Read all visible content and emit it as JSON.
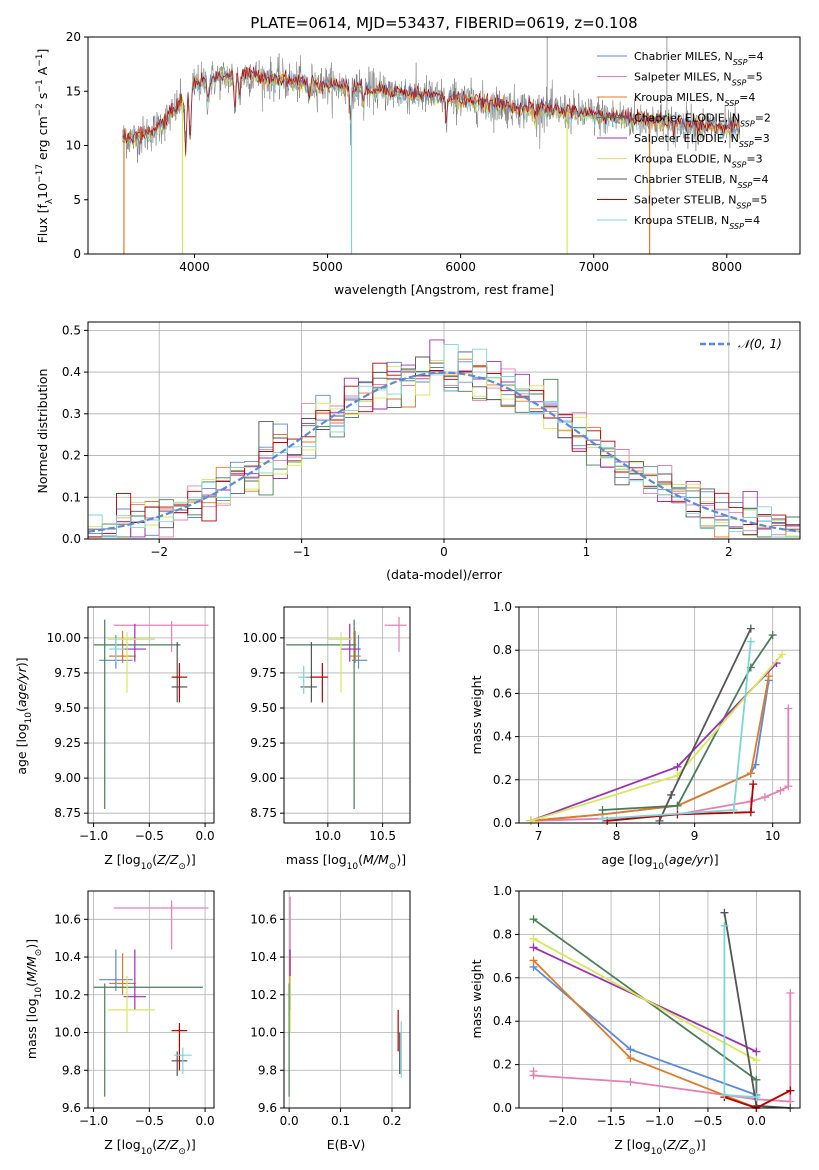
{
  "figure_title": "PLATE=0614, MJD=53437, FIBERID=0619, z=0.108",
  "colors": {
    "Chabrier MILES": "#5b8ad8",
    "Salpeter MILES": "#e580b4",
    "Kroupa MILES": "#e07a28",
    "Chabrier ELODIE": "#4a7c59",
    "Salpeter ELODIE": "#9b30b0",
    "Kroupa ELODIE": "#d6e85a",
    "Chabrier STELIB": "#555555",
    "Salpeter STELIB": "#b30000",
    "Kroupa STELIB": "#7fd4d8"
  },
  "chart_data": [
    {
      "id": "spectrum",
      "type": "line",
      "title": "PLATE=0614, MJD=53437, FIBERID=0619, z=0.108",
      "xlabel": "wavelength [Angstrom, rest frame]",
      "ylabel": "Flux [f",
      "xlim": [
        3200,
        8550
      ],
      "ylim": [
        0,
        20
      ],
      "xticks": [
        4000,
        5000,
        6000,
        7000,
        8000
      ],
      "yticks": [
        0,
        5,
        10,
        15,
        20
      ],
      "legend_position": "upper-right",
      "series": [
        {
          "name": "Chabrier MILES, N",
          "n": "4"
        },
        {
          "name": "Salpeter MILES, N",
          "n": "5"
        },
        {
          "name": "Kroupa MILES, N",
          "n": "4"
        },
        {
          "name": "Chabrier ELODIE, N",
          "n": "2"
        },
        {
          "name": "Salpeter ELODIE, N",
          "n": "3"
        },
        {
          "name": "Kroupa ELODIE, N",
          "n": "3"
        },
        {
          "name": "Chabrier STELIB, N",
          "n": "4"
        },
        {
          "name": "Salpeter STELIB, N",
          "n": "5"
        },
        {
          "name": "Kroupa STELIB, N",
          "n": "4"
        }
      ],
      "continuum": {
        "x": [
          3460,
          3600,
          3700,
          3800,
          3900,
          4000,
          4200,
          4400,
          4600,
          4800,
          5000,
          5200,
          5500,
          5800,
          6000,
          6200,
          6500,
          6800,
          7000,
          7200,
          7500,
          7800,
          8000,
          8100
        ],
        "y": [
          10.6,
          10.8,
          11.4,
          12.5,
          14,
          15.6,
          16.3,
          16.5,
          16.1,
          15.8,
          15.6,
          15.3,
          14.9,
          14.5,
          14.2,
          13.8,
          13.4,
          13.1,
          12.8,
          12.5,
          12.2,
          11.8,
          11.5,
          11.4
        ]
      }
    },
    {
      "id": "residuals",
      "type": "line",
      "xlabel": "(data-model)/error",
      "ylabel": "Normed distribution",
      "xlim": [
        -2.5,
        2.5
      ],
      "ylim": [
        0,
        0.52
      ],
      "xticks": [
        -2,
        -1,
        0,
        1,
        2
      ],
      "yticks": [
        0.0,
        0.1,
        0.2,
        0.3,
        0.4,
        0.5
      ],
      "grid": true,
      "legend": "𝒩(0, 1)",
      "legend_position": "upper-right",
      "bin_width": 0.1
    },
    {
      "id": "age-vs-Z",
      "type": "scatter",
      "xlabel": "Z [log",
      "ylabel": "age  [log",
      "xlim": [
        -1.05,
        0.08
      ],
      "ylim": [
        8.68,
        10.22
      ],
      "xticks": [
        -1.0,
        -0.5,
        0.0
      ],
      "yticks": [
        8.75,
        9.0,
        9.25,
        9.5,
        9.75,
        10.0
      ],
      "grid": true,
      "points": [
        {
          "s": "Chabrier MILES",
          "x": -0.8,
          "y": 9.84,
          "xe": [
            -0.95,
            -0.65
          ],
          "ye": [
            9.78,
            10.02
          ]
        },
        {
          "s": "Salpeter MILES",
          "x": -0.3,
          "y": 10.09,
          "xe": [
            -0.82,
            0.03
          ],
          "ye": [
            9.9,
            10.12
          ]
        },
        {
          "s": "Kroupa MILES",
          "x": -0.74,
          "y": 9.87,
          "xe": [
            -0.86,
            -0.62
          ],
          "ye": [
            9.82,
            10.05
          ]
        },
        {
          "s": "Chabrier ELODIE",
          "x": -0.9,
          "y": 9.95,
          "xe": [
            -1.0,
            -0.22
          ],
          "ye": [
            8.78,
            10.13
          ]
        },
        {
          "s": "Salpeter ELODIE",
          "x": -0.63,
          "y": 9.92,
          "xe": [
            -0.73,
            -0.53
          ],
          "ye": [
            9.83,
            10.1
          ]
        },
        {
          "s": "Kroupa ELODIE",
          "x": -0.7,
          "y": 9.99,
          "xe": [
            -0.87,
            -0.45
          ],
          "ye": [
            9.61,
            10.04
          ]
        },
        {
          "s": "Chabrier STELIB",
          "x": -0.25,
          "y": 9.65,
          "xe": [
            -0.3,
            -0.16
          ],
          "ye": [
            9.54,
            9.97
          ]
        },
        {
          "s": "Salpeter STELIB",
          "x": -0.23,
          "y": 9.72,
          "xe": [
            -0.3,
            -0.16
          ],
          "ye": [
            9.54,
            9.82
          ]
        },
        {
          "s": "Kroupa STELIB",
          "x": -0.8,
          "y": 9.92,
          "xe": [
            -0.86,
            -0.72
          ],
          "ye": [
            9.83,
            10.0
          ]
        }
      ]
    },
    {
      "id": "age-vs-mass",
      "type": "scatter",
      "xlabel": "mass [log",
      "xlim": [
        9.6,
        10.75
      ],
      "ylim": [
        8.68,
        10.22
      ],
      "xticks": [
        10.0,
        10.5
      ],
      "yticks": [
        8.75,
        9.0,
        9.25,
        9.5,
        9.75,
        10.0
      ],
      "grid": true,
      "points": [
        {
          "s": "Chabrier MILES",
          "x": 10.28,
          "y": 9.84,
          "xe": [
            10.22,
            10.36
          ],
          "ye": [
            9.78,
            10.02
          ]
        },
        {
          "s": "Salpeter MILES",
          "x": 10.65,
          "y": 10.09,
          "xe": [
            10.52,
            10.72
          ],
          "ye": [
            9.9,
            10.15
          ]
        },
        {
          "s": "Kroupa MILES",
          "x": 10.25,
          "y": 9.87,
          "xe": [
            10.2,
            10.3
          ],
          "ye": [
            9.82,
            10.05
          ]
        },
        {
          "s": "Chabrier ELODIE",
          "x": 10.24,
          "y": 9.95,
          "xe": [
            9.62,
            10.26
          ],
          "ye": [
            8.78,
            10.13
          ]
        },
        {
          "s": "Salpeter ELODIE",
          "x": 10.2,
          "y": 9.92,
          "xe": [
            10.12,
            10.3
          ],
          "ye": [
            9.83,
            10.1
          ]
        },
        {
          "s": "Kroupa ELODIE",
          "x": 10.12,
          "y": 9.99,
          "xe": [
            10.0,
            10.22
          ],
          "ye": [
            9.61,
            10.04
          ]
        },
        {
          "s": "Chabrier STELIB",
          "x": 9.85,
          "y": 9.65,
          "xe": [
            9.75,
            9.9
          ],
          "ye": [
            9.54,
            9.97
          ]
        },
        {
          "s": "Salpeter STELIB",
          "x": 9.95,
          "y": 9.72,
          "xe": [
            9.8,
            10.0
          ],
          "ye": [
            9.54,
            9.82
          ]
        },
        {
          "s": "Kroupa STELIB",
          "x": 9.78,
          "y": 9.72,
          "xe": [
            9.73,
            9.84
          ],
          "ye": [
            9.6,
            9.8
          ]
        }
      ]
    },
    {
      "id": "massweight-vs-age",
      "type": "line",
      "xlabel": "age  [log",
      "ylabel": "mass weight",
      "xlim": [
        6.75,
        10.35
      ],
      "ylim": [
        0,
        1
      ],
      "xticks": [
        7,
        8,
        9,
        10
      ],
      "yticks": [
        0.0,
        0.2,
        0.4,
        0.6,
        0.8,
        1.0
      ],
      "grid": true,
      "series": [
        {
          "s": "Chabrier MILES",
          "x": [
            6.9,
            7.82,
            8.78,
            9.72,
            9.78,
            9.95
          ],
          "y": [
            0.01,
            0.04,
            0.08,
            0.23,
            0.27,
            0.66
          ]
        },
        {
          "s": "Salpeter MILES",
          "x": [
            6.9,
            7.82,
            8.78,
            9.72,
            9.9,
            10.1,
            10.2,
            10.2
          ],
          "y": [
            0.01,
            0.02,
            0.04,
            0.1,
            0.12,
            0.15,
            0.17,
            0.53
          ]
        },
        {
          "s": "Kroupa MILES",
          "x": [
            6.9,
            7.82,
            8.78,
            9.72,
            9.95
          ],
          "y": [
            0.01,
            0.04,
            0.08,
            0.23,
            0.68
          ]
        },
        {
          "s": "Chabrier ELODIE",
          "x": [
            7.82,
            8.78,
            9.72,
            10.0
          ],
          "y": [
            0.06,
            0.08,
            0.72,
            0.87
          ]
        },
        {
          "s": "Salpeter ELODIE",
          "x": [
            6.9,
            8.78,
            10.05
          ],
          "y": [
            0.01,
            0.26,
            0.74
          ]
        },
        {
          "s": "Kroupa ELODIE",
          "x": [
            6.9,
            8.78,
            10.12
          ],
          "y": [
            0.01,
            0.22,
            0.78
          ]
        },
        {
          "s": "Chabrier STELIB",
          "x": [
            8.55,
            8.7,
            9.72
          ],
          "y": [
            0.01,
            0.13,
            0.9
          ]
        },
        {
          "s": "Salpeter STELIB",
          "x": [
            7.88,
            8.78,
            9.72,
            9.75
          ],
          "y": [
            0.01,
            0.04,
            0.05,
            0.18
          ]
        },
        {
          "s": "Kroupa STELIB",
          "x": [
            7.82,
            9.5,
            9.72
          ],
          "y": [
            0.02,
            0.06,
            0.84
          ]
        }
      ]
    },
    {
      "id": "mass-vs-Z",
      "type": "scatter",
      "xlabel": "Z [log",
      "ylabel": "mass [log",
      "xlim": [
        -1.05,
        0.08
      ],
      "ylim": [
        9.6,
        10.75
      ],
      "xticks": [
        -1.0,
        -0.5,
        0.0
      ],
      "yticks": [
        9.6,
        9.8,
        10.0,
        10.2,
        10.4,
        10.6
      ],
      "grid": true,
      "points": [
        {
          "s": "Chabrier MILES",
          "x": -0.8,
          "y": 10.28,
          "xe": [
            -0.95,
            -0.65
          ],
          "ye": [
            10.22,
            10.44
          ]
        },
        {
          "s": "Salpeter MILES",
          "x": -0.3,
          "y": 10.66,
          "xe": [
            -0.82,
            0.03
          ],
          "ye": [
            10.44,
            10.7
          ]
        },
        {
          "s": "Kroupa MILES",
          "x": -0.74,
          "y": 10.26,
          "xe": [
            -0.86,
            -0.62
          ],
          "ye": [
            10.2,
            10.42
          ]
        },
        {
          "s": "Chabrier ELODIE",
          "x": -0.9,
          "y": 10.24,
          "xe": [
            -1.0,
            -0.02
          ],
          "ye": [
            9.66,
            10.26
          ]
        },
        {
          "s": "Salpeter ELODIE",
          "x": -0.63,
          "y": 10.19,
          "xe": [
            -0.73,
            -0.53
          ],
          "ye": [
            10.12,
            10.44
          ]
        },
        {
          "s": "Kroupa ELODIE",
          "x": -0.7,
          "y": 10.12,
          "xe": [
            -0.87,
            -0.45
          ],
          "ye": [
            10.0,
            10.3
          ]
        },
        {
          "s": "Chabrier STELIB",
          "x": -0.25,
          "y": 9.85,
          "xe": [
            -0.3,
            -0.16
          ],
          "ye": [
            9.77,
            9.9
          ]
        },
        {
          "s": "Salpeter STELIB",
          "x": -0.23,
          "y": 10.01,
          "xe": [
            -0.3,
            -0.16
          ],
          "ye": [
            9.8,
            10.05
          ]
        },
        {
          "s": "Kroupa STELIB",
          "x": -0.2,
          "y": 9.88,
          "xe": [
            -0.28,
            -0.12
          ],
          "ye": [
            9.78,
            9.92
          ]
        }
      ]
    },
    {
      "id": "mass-vs-ebv",
      "type": "scatter",
      "xlabel": "E(B-V)",
      "xlim": [
        -0.01,
        0.235
      ],
      "ylim": [
        9.6,
        10.75
      ],
      "xticks": [
        0.0,
        0.1,
        0.2
      ],
      "yticks": [
        9.6,
        9.8,
        10.0,
        10.2,
        10.4,
        10.6
      ],
      "grid": true,
      "points": [
        {
          "s": "Chabrier MILES",
          "x": 0.001,
          "y": 10.28,
          "ye": [
            10.22,
            10.44
          ]
        },
        {
          "s": "Salpeter MILES",
          "x": 0.002,
          "y": 10.6,
          "ye": [
            10.44,
            10.72
          ]
        },
        {
          "s": "Kroupa MILES",
          "x": 0.001,
          "y": 10.26,
          "ye": [
            10.2,
            10.42
          ]
        },
        {
          "s": "Chabrier ELODIE",
          "x": 0.0,
          "y": 10.0,
          "ye": [
            9.66,
            10.26
          ]
        },
        {
          "s": "Salpeter ELODIE",
          "x": 0.002,
          "y": 10.3,
          "ye": [
            10.12,
            10.44
          ]
        },
        {
          "s": "Kroupa ELODIE",
          "x": 0.002,
          "y": 10.15,
          "ye": [
            10.0,
            10.3
          ]
        },
        {
          "s": "Chabrier STELIB",
          "x": 0.215,
          "y": 9.88,
          "ye": [
            9.78,
            10.0
          ]
        },
        {
          "s": "Salpeter STELIB",
          "x": 0.212,
          "y": 10.02,
          "ye": [
            9.9,
            10.12
          ]
        },
        {
          "s": "Kroupa STELIB",
          "x": 0.218,
          "y": 9.9,
          "ye": [
            9.76,
            10.06
          ]
        }
      ]
    },
    {
      "id": "massweight-vs-Z",
      "type": "line",
      "xlabel": "Z [log",
      "ylabel": "mass weight",
      "xlim": [
        -2.45,
        0.45
      ],
      "ylim": [
        0,
        1
      ],
      "xticks": [
        -2.0,
        -1.5,
        -1.0,
        -0.5,
        0.0
      ],
      "yticks": [
        0.0,
        0.2,
        0.4,
        0.6,
        0.8,
        1.0
      ],
      "grid": true,
      "series": [
        {
          "s": "Chabrier MILES",
          "x": [
            -2.3,
            -1.3,
            0.0
          ],
          "y": [
            0.65,
            0.27,
            0.06
          ]
        },
        {
          "s": "Salpeter MILES",
          "x": [
            -2.3,
            -2.3,
            -1.3,
            0.0,
            0.35,
            0.35
          ],
          "y": [
            0.17,
            0.15,
            0.12,
            0.04,
            0.03,
            0.53
          ]
        },
        {
          "s": "Kroupa MILES",
          "x": [
            -2.3,
            -1.3,
            0.0,
            0.35
          ],
          "y": [
            0.68,
            0.23,
            0.0,
            0.08
          ]
        },
        {
          "s": "Chabrier ELODIE",
          "x": [
            -2.3,
            0.0,
            0.0
          ],
          "y": [
            0.87,
            0.13,
            0.0
          ]
        },
        {
          "s": "Salpeter ELODIE",
          "x": [
            -2.3,
            0.0
          ],
          "y": [
            0.74,
            0.26
          ]
        },
        {
          "s": "Kroupa ELODIE",
          "x": [
            -2.3,
            0.0
          ],
          "y": [
            0.78,
            0.22
          ]
        },
        {
          "s": "Chabrier STELIB",
          "x": [
            -0.33,
            0.0,
            0.35
          ],
          "y": [
            0.9,
            0.01,
            0.0
          ]
        },
        {
          "s": "Salpeter STELIB",
          "x": [
            -0.33,
            0.0,
            0.35
          ],
          "y": [
            0.05,
            0.0,
            0.08
          ]
        },
        {
          "s": "Kroupa STELIB",
          "x": [
            -0.33,
            -0.33,
            0.0
          ],
          "y": [
            0.84,
            0.06,
            0.05
          ]
        }
      ]
    }
  ]
}
